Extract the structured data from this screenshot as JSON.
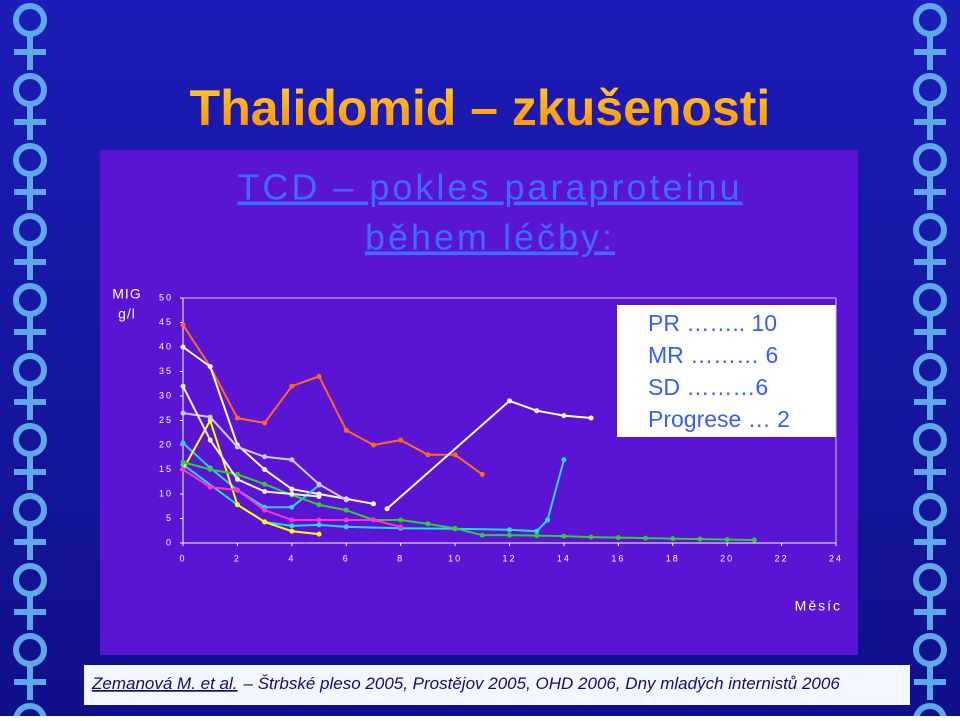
{
  "slide": {
    "title": "Thalidomid – zkušenosti",
    "subtitle": [
      "TCD – pokles paraproteinu",
      "během léčby:"
    ],
    "footer": {
      "author": "Zemanová M. et al.",
      "text": "– Štrbské pleso 2005, Prostějov 2005, OHD 2006, Dny mladých internistů 2006"
    }
  },
  "chart_data": {
    "type": "line",
    "y_label": [
      "MIG",
      "g/l"
    ],
    "x_label": "Měsíc",
    "annotations": [
      "PR …….. 10",
      "MR ……… 6",
      "SD ………6",
      "Progrese … 2"
    ],
    "xlim": [
      0,
      24
    ],
    "xticks": [
      0,
      2,
      4,
      6,
      8,
      10,
      12,
      14,
      16,
      18,
      20,
      22,
      24
    ],
    "ylim": [
      0,
      50
    ],
    "yticks": [
      0,
      5,
      10,
      15,
      20,
      25,
      30,
      35,
      40,
      45,
      50
    ],
    "series": [
      {
        "color": "#ff6a1a",
        "x": [
          0,
          1,
          2,
          3,
          4,
          5,
          6,
          7,
          8,
          9,
          10,
          11
        ],
        "values": [
          44.5,
          36,
          25.5,
          24.5,
          32,
          34,
          23,
          20,
          21,
          18,
          18,
          14
        ]
      },
      {
        "color": "#ffffff",
        "x": [
          0,
          1,
          2,
          3,
          4,
          5,
          6,
          7
        ],
        "values": [
          40,
          36,
          20,
          15,
          11,
          10,
          9,
          8
        ]
      },
      {
        "color": "#ffffff",
        "x": [
          7.5,
          12,
          13,
          14,
          15
        ],
        "values": [
          7,
          29,
          27,
          26,
          25.5
        ]
      },
      {
        "color": "#33ccff",
        "x": [
          0,
          1,
          2,
          3,
          4,
          5
        ],
        "values": [
          20.4,
          15.3,
          10.8,
          7.3,
          7.3,
          11.8
        ]
      },
      {
        "color": "#22ddee",
        "x": [
          0,
          2,
          3,
          4,
          5,
          6,
          8,
          10,
          12,
          13,
          13.4,
          14
        ],
        "values": [
          16,
          7.8,
          4.3,
          3.5,
          3.7,
          3.3,
          3,
          2.9,
          2.7,
          2.4,
          4.7,
          17
        ]
      },
      {
        "color": "#ffff00",
        "x": [
          0,
          1,
          2,
          3,
          4,
          5
        ],
        "values": [
          15,
          25,
          7.8,
          4.3,
          2.4,
          1.8
        ]
      },
      {
        "color": "#ccccff",
        "x": [
          0,
          1,
          2,
          3,
          4,
          5,
          6
        ],
        "values": [
          26.5,
          25.7,
          19.6,
          17.6,
          17,
          12,
          8.8
        ]
      },
      {
        "color": "#33cc33",
        "x": [
          0,
          1,
          2,
          3,
          4,
          5,
          6,
          7,
          8,
          9,
          10,
          11,
          12,
          13,
          14,
          15,
          16,
          17,
          18,
          19,
          20,
          21
        ],
        "values": [
          16.5,
          15,
          14,
          12,
          9.8,
          7.8,
          6.7,
          4.7,
          4.7,
          3.9,
          3,
          1.6,
          1.6,
          1.5,
          1.4,
          1.2,
          1.1,
          1,
          0.9,
          0.8,
          0.7,
          0.6
        ]
      },
      {
        "color": "#ff33cc",
        "x": [
          0,
          1,
          2,
          3,
          4,
          5,
          6,
          7,
          8
        ],
        "values": [
          15,
          11.4,
          10.8,
          6.7,
          4.7,
          4.7,
          4.7,
          4.7,
          3.3
        ]
      },
      {
        "color": "#eeeeee",
        "x": [
          0,
          1,
          2,
          3,
          4,
          5
        ],
        "values": [
          32,
          21,
          13,
          10.5,
          10,
          9.5
        ]
      }
    ]
  }
}
